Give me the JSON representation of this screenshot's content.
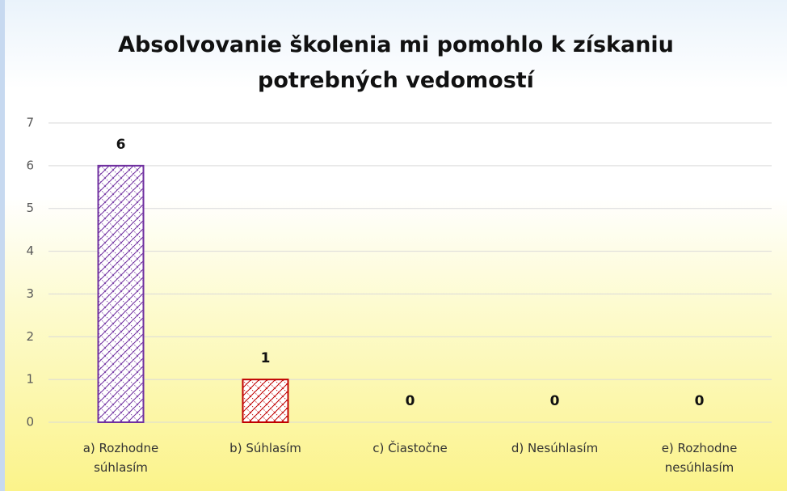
{
  "chart_data": {
    "type": "bar",
    "title": "Absolvovanie školenia mi pomohlo k získaniu potrebných vedomostí",
    "categories": [
      "a) Rozhodne súhlasím",
      "b) Súhlasím",
      "c) Čiastočne",
      "d) Nesúhlasím",
      "e) Rozhodne nesúhlasím"
    ],
    "values": [
      6,
      1,
      0,
      0,
      0
    ],
    "colors": [
      "#7030a0",
      "#c00000",
      "#00b050",
      "#0070c0",
      "#ed7d31"
    ],
    "ylim": [
      0,
      7
    ],
    "yticks": [
      0,
      1,
      2,
      3,
      4,
      5,
      6,
      7
    ],
    "grid": true
  }
}
